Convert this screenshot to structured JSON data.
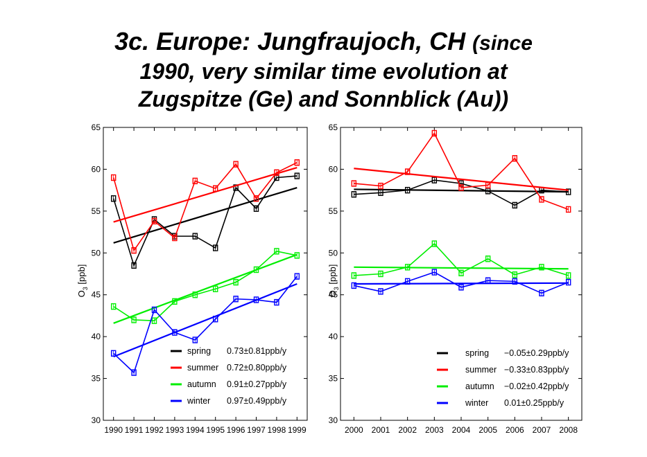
{
  "title": {
    "line1_main": "3c. Europe: Jungfraujoch, CH",
    "line1_small": "(since",
    "line2": "1990, very similar time evolution at",
    "line3": "Zugspitze (Ge) and Sonnblick (Au))"
  },
  "chart_data": [
    {
      "type": "line",
      "ylabel_main": "O",
      "ylabel_sub": "3",
      "ylabel_unit": "[ppb]",
      "ylim": [
        30,
        65
      ],
      "yticks": [
        30,
        35,
        40,
        45,
        50,
        55,
        60,
        65
      ],
      "x": [
        1990,
        1991,
        1992,
        1993,
        1994,
        1995,
        1996,
        1997,
        1998,
        1999
      ],
      "grid": false,
      "legend_position": "bottom-right",
      "series": [
        {
          "name": "spring",
          "color": "#000000",
          "values": [
            56.5,
            48.5,
            54,
            52,
            52,
            50.6,
            57.8,
            55.3,
            59,
            59.2
          ],
          "trend": [
            51.2,
            57.8
          ],
          "legend_value": "0.73±0.81ppb/y"
        },
        {
          "name": "summer",
          "color": "#ff0000",
          "values": [
            59,
            50.3,
            53.8,
            51.8,
            58.6,
            57.7,
            60.6,
            56.5,
            59.6,
            60.8
          ],
          "trend": [
            53.7,
            60.2
          ],
          "legend_value": "0.72±0.80ppb/y"
        },
        {
          "name": "autumn",
          "color": "#00ee00",
          "values": [
            43.6,
            42,
            41.9,
            44.2,
            45,
            45.7,
            46.5,
            48,
            50.2,
            49.7
          ],
          "trend": [
            41.6,
            49.8
          ],
          "legend_value": "0.91±0.27ppb/y"
        },
        {
          "name": "winter",
          "color": "#0000ff",
          "values": [
            38,
            35.7,
            43.2,
            40.5,
            39.6,
            42.1,
            44.5,
            44.4,
            44.1,
            47.2
          ],
          "trend": [
            37.6,
            46.3
          ],
          "legend_value": "0.97±0.49ppb/y"
        }
      ]
    },
    {
      "type": "line",
      "ylabel_main": "O",
      "ylabel_sub": "3",
      "ylabel_unit": "[ppb]",
      "ylim": [
        30,
        65
      ],
      "yticks": [
        30,
        35,
        40,
        45,
        50,
        55,
        60,
        65
      ],
      "x": [
        2000,
        2001,
        2002,
        2003,
        2004,
        2005,
        2006,
        2007,
        2008
      ],
      "grid": false,
      "legend_position": "bottom-right",
      "series": [
        {
          "name": "spring",
          "color": "#000000",
          "values": [
            57,
            57.2,
            57.5,
            58.7,
            58.3,
            57.4,
            55.7,
            57.5,
            57.3
          ],
          "trend": [
            57.6,
            57.3
          ],
          "legend_value": "−0.05±0.29ppb/y"
        },
        {
          "name": "summer",
          "color": "#ff0000",
          "values": [
            58.3,
            58,
            59.7,
            64.3,
            57.8,
            58.1,
            61.3,
            56.4,
            55.2
          ],
          "trend": [
            60.1,
            57.5
          ],
          "legend_value": "−0.33±0.83ppb/y"
        },
        {
          "name": "autumn",
          "color": "#00ee00",
          "values": [
            47.3,
            47.5,
            48.3,
            51.1,
            47.6,
            49.3,
            47.4,
            48.3,
            47.3
          ],
          "trend": [
            48.3,
            48.1
          ],
          "legend_value": "−0.02±0.42ppb/y"
        },
        {
          "name": "winter",
          "color": "#0000ff",
          "values": [
            46.1,
            45.4,
            46.6,
            47.7,
            45.9,
            46.7,
            46.6,
            45.2,
            46.5
          ],
          "trend": [
            46.3,
            46.4
          ],
          "legend_value": "0.01±0.25ppb/y"
        }
      ]
    }
  ]
}
